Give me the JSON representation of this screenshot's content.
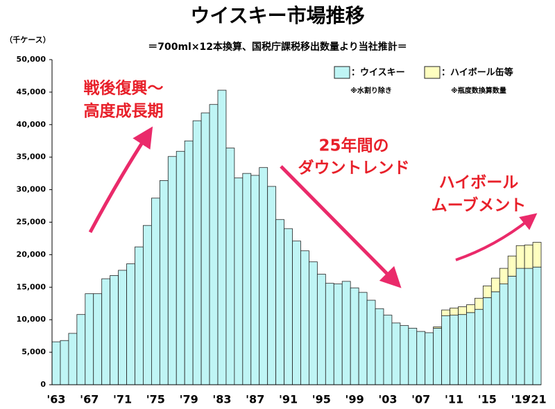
{
  "chart_data": {
    "type": "stacked_bar",
    "title": "ウイスキー市場推移",
    "subtitle": "＝700ml×12本換算、国税庁課税移出数量より当社推計＝",
    "y_unit": "（千ケース）",
    "notes": [
      "※水割り除き",
      "※瓶度数換算数量"
    ],
    "annotations": [
      [
        "戦後復興～",
        "高度成長期"
      ],
      [
        "25年間の",
        "ダウントレンド"
      ],
      [
        "ハイボール",
        "ムーブメント"
      ]
    ],
    "categories": [
      "'63",
      null,
      null,
      null,
      "'67",
      null,
      null,
      null,
      "'71",
      null,
      null,
      null,
      "'75",
      null,
      null,
      null,
      "'79",
      null,
      null,
      null,
      "'83",
      null,
      null,
      null,
      "'87",
      null,
      null,
      null,
      "'91",
      null,
      null,
      null,
      "'95",
      null,
      null,
      null,
      "'99",
      null,
      null,
      null,
      "'03",
      null,
      null,
      null,
      "'07",
      null,
      null,
      null,
      "'11",
      null,
      null,
      null,
      "'15",
      null,
      null,
      null,
      "'19",
      null,
      "'21"
    ],
    "series": [
      {
        "name": "：ウイスキー",
        "color": "#bff5f5",
        "values": [
          6600,
          6800,
          7900,
          10800,
          14000,
          14000,
          16300,
          16800,
          17600,
          18600,
          21200,
          24500,
          28700,
          31400,
          35100,
          35900,
          37500,
          40600,
          41800,
          43100,
          45300,
          36400,
          31800,
          32500,
          32200,
          33400,
          30500,
          25400,
          24000,
          22100,
          20600,
          18900,
          17000,
          15600,
          15500,
          15900,
          14900,
          14200,
          13000,
          11700,
          10700,
          9500,
          9100,
          8700,
          8200,
          8000,
          8700,
          10600,
          10700,
          10800,
          11100,
          11600,
          13400,
          14300,
          15500,
          16700,
          17900,
          17900,
          18100
        ]
      },
      {
        "name": "：ハイボール缶等",
        "color": "#ffffc0",
        "values": [
          null,
          null,
          null,
          null,
          null,
          null,
          null,
          null,
          null,
          null,
          null,
          null,
          null,
          null,
          null,
          null,
          null,
          null,
          null,
          null,
          null,
          null,
          null,
          null,
          null,
          null,
          null,
          null,
          null,
          null,
          null,
          null,
          null,
          null,
          null,
          null,
          null,
          null,
          null,
          null,
          null,
          null,
          null,
          null,
          null,
          null,
          200,
          900,
          1100,
          1200,
          1200,
          1700,
          1800,
          2100,
          2400,
          3100,
          3500,
          3600,
          3800
        ]
      }
    ],
    "ylim": [
      0,
      50000
    ],
    "yticks": [
      0,
      {
        "value": 5000,
        "label": "5,000"
      },
      {
        "value": 10000,
        "label": "10,000"
      },
      {
        "value": 15000,
        "label": "15,000"
      },
      {
        "value": 20000,
        "label": "20,000"
      },
      {
        "value": 25000,
        "label": "25,000"
      },
      {
        "value": 30000,
        "label": "30,000"
      },
      {
        "value": 35000,
        "label": "35,000"
      },
      {
        "value": 40000,
        "label": "40,000"
      },
      {
        "value": 45000,
        "label": "45,000"
      },
      {
        "value": 50000,
        "label": "50,000"
      }
    ],
    "grid": false
  }
}
